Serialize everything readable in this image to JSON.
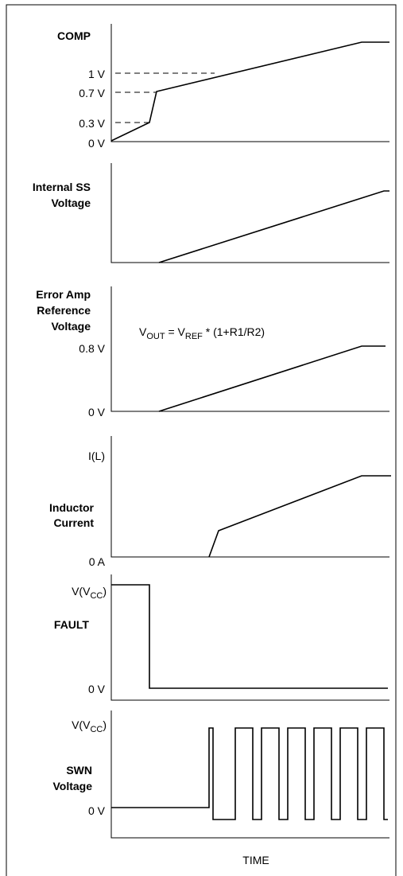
{
  "panels": [
    {
      "label": [
        "COMP"
      ],
      "levels": [
        "1 V",
        "0.7 V",
        "0.3 V",
        "0 V"
      ]
    },
    {
      "label": [
        "Internal SS",
        "Voltage"
      ]
    },
    {
      "label": [
        "Error Amp",
        "Reference",
        "Voltage"
      ],
      "levels": [
        "0.8 V",
        "0 V"
      ],
      "equation": [
        "V",
        "OUT",
        " = V",
        "REF",
        " * (1+R1/R2)"
      ]
    },
    {
      "label": [
        "Inductor",
        "Current"
      ],
      "levels": [
        "I(L)",
        "0 A"
      ]
    },
    {
      "label": [
        "FAULT"
      ],
      "levels": [
        [
          "V(V",
          "CC",
          ")"
        ],
        "0 V"
      ]
    },
    {
      "label": [
        "SWN",
        "Voltage"
      ],
      "levels": [
        [
          "V(V",
          "CC",
          ")"
        ],
        "0 V"
      ]
    }
  ],
  "x_axis_label": "TIME"
}
